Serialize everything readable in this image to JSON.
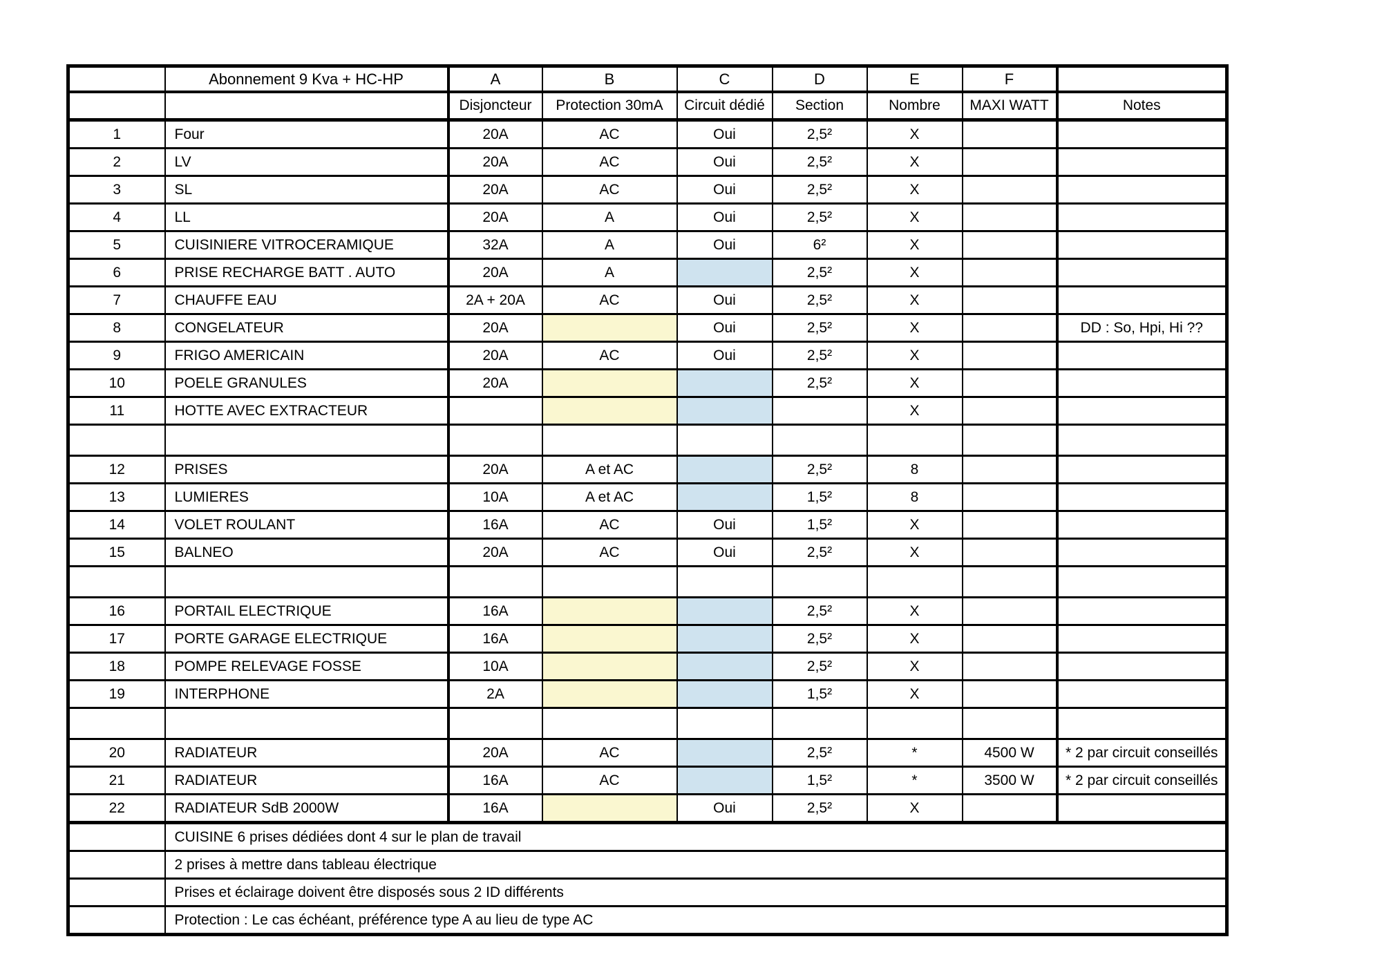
{
  "header": {
    "title": "Abonnement 9 Kva + HC-HP"
  },
  "columns": {
    "letters": [
      "A",
      "B",
      "C",
      "D",
      "E",
      "F"
    ],
    "labels": {
      "disjoncteur": "Disjoncteur",
      "protection": "Protection 30mA",
      "dedie": "Circuit dédié",
      "section": "Section",
      "nombre": "Nombre",
      "maxi": "MAXI WATT",
      "notes": "Notes"
    }
  },
  "colors": {
    "fill_yellow": "#FAF7D0",
    "fill_blue": "#CFE3EF",
    "border": "#000000"
  },
  "rows": [
    {
      "num": "1",
      "label": "Four",
      "disjoncteur": "20A",
      "protection": "AC",
      "dedie": "Oui",
      "section": "2,5²",
      "nombre": "X",
      "maxi": "",
      "notes": ""
    },
    {
      "num": "2",
      "label": "LV",
      "disjoncteur": "20A",
      "protection": "AC",
      "dedie": "Oui",
      "section": "2,5²",
      "nombre": "X",
      "maxi": "",
      "notes": ""
    },
    {
      "num": "3",
      "label": "SL",
      "disjoncteur": "20A",
      "protection": "AC",
      "dedie": "Oui",
      "section": "2,5²",
      "nombre": "X",
      "maxi": "",
      "notes": ""
    },
    {
      "num": "4",
      "label": "LL",
      "disjoncteur": "20A",
      "protection": "A",
      "dedie": "Oui",
      "section": "2,5²",
      "nombre": "X",
      "maxi": "",
      "notes": ""
    },
    {
      "num": "5",
      "label": "CUISINIERE VITROCERAMIQUE",
      "disjoncteur": "32A",
      "protection": "A",
      "dedie": "Oui",
      "section": "6²",
      "nombre": "X",
      "maxi": "",
      "notes": ""
    },
    {
      "num": "6",
      "label": "PRISE RECHARGE BATT . AUTO",
      "disjoncteur": "20A",
      "protection": "A",
      "dedie": "",
      "dedie_fill": true,
      "section": "2,5²",
      "nombre": "X",
      "maxi": "",
      "notes": ""
    },
    {
      "num": "7",
      "label": "CHAUFFE EAU",
      "disjoncteur": "2A + 20A",
      "protection": "AC",
      "dedie": "Oui",
      "section": "2,5²",
      "nombre": "X",
      "maxi": "",
      "notes": ""
    },
    {
      "num": "8",
      "label": "CONGELATEUR",
      "disjoncteur": "20A",
      "protection": "",
      "protection_fill": true,
      "dedie": "Oui",
      "section": "2,5²",
      "nombre": "X",
      "maxi": "",
      "notes": "DD : So, Hpi, Hi ??"
    },
    {
      "num": "9",
      "label": "FRIGO AMERICAIN",
      "disjoncteur": "20A",
      "protection": "AC",
      "dedie": "Oui",
      "section": "2,5²",
      "nombre": "X",
      "maxi": "",
      "notes": ""
    },
    {
      "num": "10",
      "label": "POELE GRANULES",
      "disjoncteur": "20A",
      "protection": "",
      "protection_fill": true,
      "dedie": "",
      "dedie_fill": true,
      "section": "2,5²",
      "nombre": "X",
      "maxi": "",
      "notes": ""
    },
    {
      "num": "11",
      "label": "HOTTE AVEC EXTRACTEUR",
      "disjoncteur": "",
      "protection": "",
      "protection_fill": true,
      "dedie": "",
      "dedie_fill": true,
      "section": "",
      "nombre": "X",
      "maxi": "",
      "notes": ""
    },
    {
      "spacer": true
    },
    {
      "num": "12",
      "label": "PRISES",
      "disjoncteur": "20A",
      "protection": "A et AC",
      "dedie": "",
      "dedie_fill": true,
      "section": "2,5²",
      "nombre": "8",
      "maxi": "",
      "notes": ""
    },
    {
      "num": "13",
      "label": "LUMIERES",
      "disjoncteur": "10A",
      "protection": "A et AC",
      "dedie": "",
      "dedie_fill": true,
      "section": "1,5²",
      "nombre": "8",
      "maxi": "",
      "notes": ""
    },
    {
      "num": "14",
      "label": "VOLET ROULANT",
      "disjoncteur": "16A",
      "protection": "AC",
      "dedie": "Oui",
      "section": "1,5²",
      "nombre": "X",
      "maxi": "",
      "notes": ""
    },
    {
      "num": "15",
      "label": "BALNEO",
      "disjoncteur": "20A",
      "protection": "AC",
      "dedie": "Oui",
      "section": "2,5²",
      "nombre": "X",
      "maxi": "",
      "notes": ""
    },
    {
      "spacer": true
    },
    {
      "num": "16",
      "label": "PORTAIL ELECTRIQUE",
      "disjoncteur": "16A",
      "protection": "",
      "protection_fill": true,
      "dedie": "",
      "dedie_fill": true,
      "section": "2,5²",
      "nombre": "X",
      "maxi": "",
      "notes": ""
    },
    {
      "num": "17",
      "label": "PORTE GARAGE ELECTRIQUE",
      "disjoncteur": "16A",
      "protection": "",
      "protection_fill": true,
      "dedie": "",
      "dedie_fill": true,
      "section": "2,5²",
      "nombre": "X",
      "maxi": "",
      "notes": ""
    },
    {
      "num": "18",
      "label": "POMPE RELEVAGE FOSSE",
      "disjoncteur": "10A",
      "protection": "",
      "protection_fill": true,
      "dedie": "",
      "dedie_fill": true,
      "section": "2,5²",
      "nombre": "X",
      "maxi": "",
      "notes": ""
    },
    {
      "num": "19",
      "label": "INTERPHONE",
      "disjoncteur": "2A",
      "protection": "",
      "protection_fill": true,
      "dedie": "",
      "dedie_fill": true,
      "section": "1,5²",
      "nombre": "X",
      "maxi": "",
      "notes": ""
    },
    {
      "spacer": true
    },
    {
      "num": "20",
      "label": "RADIATEUR",
      "disjoncteur": "20A",
      "protection": "AC",
      "dedie": "",
      "dedie_fill": true,
      "section": "2,5²",
      "nombre": "*",
      "maxi": "4500 W",
      "notes": "* 2 par circuit conseillés"
    },
    {
      "num": "21",
      "label": "RADIATEUR",
      "disjoncteur": "16A",
      "protection": "AC",
      "dedie": "",
      "dedie_fill": true,
      "section": "1,5²",
      "nombre": "*",
      "maxi": "3500 W",
      "notes": "* 2 par circuit conseillés"
    },
    {
      "num": "22",
      "label": "RADIATEUR SdB 2000W",
      "disjoncteur": "16A",
      "protection": "",
      "protection_fill": true,
      "dedie": "Oui",
      "section": "2,5²",
      "nombre": "X",
      "maxi": "",
      "notes": ""
    }
  ],
  "footer_notes": [
    "CUISINE 6 prises dédiées dont 4 sur le plan de travail",
    "2 prises à mettre dans tableau électrique",
    "Prises et éclairage doivent être disposés sous 2 ID différents",
    "Protection : Le cas échéant, préférence type A au lieu de type AC"
  ]
}
